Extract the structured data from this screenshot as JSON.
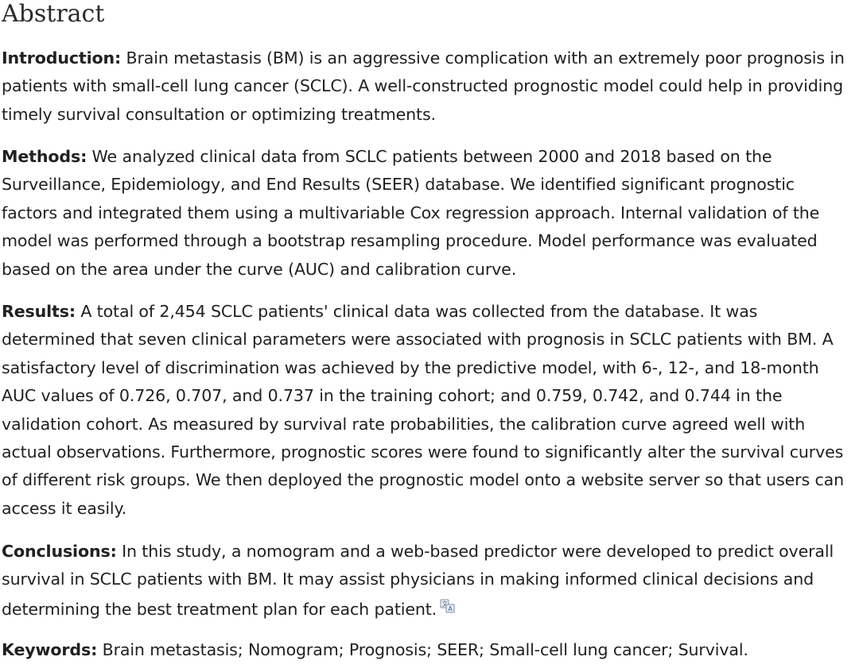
{
  "heading": "Abstract",
  "sections": {
    "introduction": {
      "label": "Introduction:",
      "text": " Brain metastasis (BM) is an aggressive complication with an extremely poor prognosis in patients with small-cell lung cancer (SCLC). A well-constructed prognostic model could help in providing timely survival consultation or optimizing treatments."
    },
    "methods": {
      "label": "Methods:",
      "text": " We analyzed clinical data from SCLC patients between 2000 and 2018 based on the Surveillance, Epidemiology, and End Results (SEER) database. We identified significant prognostic factors and integrated them using a multivariable Cox regression approach. Internal validation of the model was performed through a bootstrap resampling procedure. Model performance was evaluated based on the area under the curve (AUC) and calibration curve."
    },
    "results": {
      "label": "Results:",
      "text": " A total of 2,454 SCLC patients' clinical data was collected from the database. It was determined that seven clinical parameters were associated with prognosis in SCLC patients with BM. A satisfactory level of discrimination was achieved by the predictive model, with 6-, 12-, and 18-month AUC values of 0.726, 0.707, and 0.737 in the training cohort; and 0.759, 0.742, and 0.744 in the validation cohort. As measured by survival rate probabilities, the calibration curve agreed well with actual observations. Furthermore, prognostic scores were found to significantly alter the survival curves of different risk groups. We then deployed the prognostic model onto a website server so that users can access it easily."
    },
    "conclusions": {
      "label": "Conclusions:",
      "text": " In this study, a nomogram and a web-based predictor were developed to predict overall survival in SCLC patients with BM. It may assist physicians in making informed clinical decisions and determining the best treatment plan for each patient."
    },
    "keywords": {
      "label": "Keywords:",
      "text": " Brain metastasis; Nomogram; Prognosis; SEER; Small-cell lung cancer; Survival."
    }
  },
  "icons": {
    "translate": "translate-icon"
  }
}
